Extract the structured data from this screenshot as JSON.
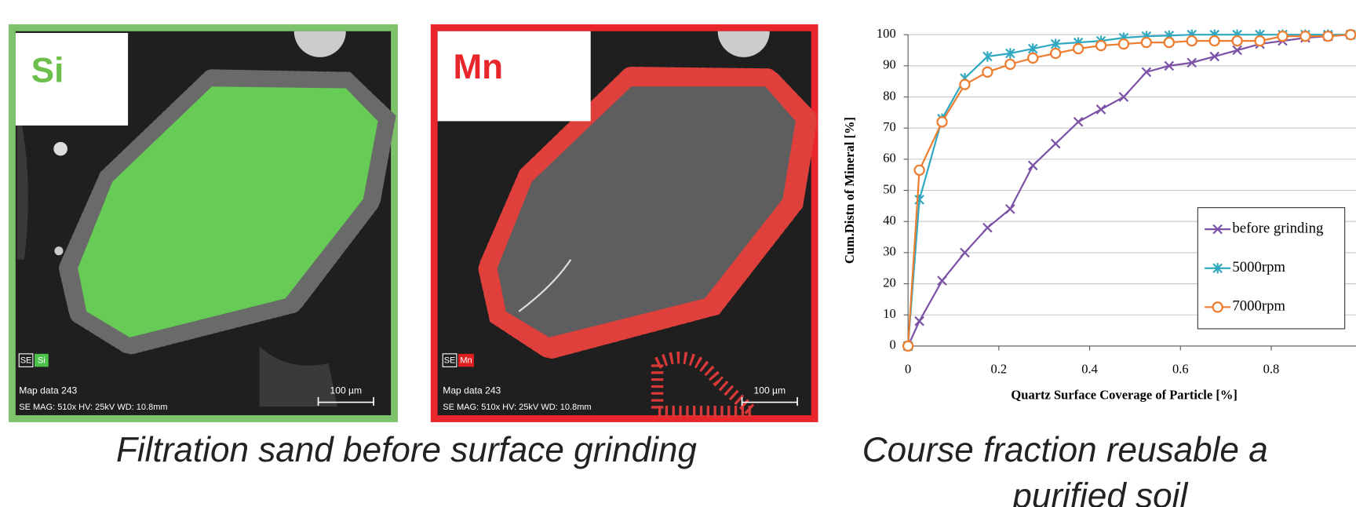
{
  "panels": [
    {
      "label": "Si",
      "label_color": "#6cbf4a",
      "border": "#7dc36b",
      "badge_se": "SE",
      "badge_element": "Si",
      "badge_color": "#4cc24a",
      "map_info": "Map data 243",
      "params": "SE  MAG: 510x  HV: 25kV  WD: 10.8mm",
      "scale": "100 µm"
    },
    {
      "label": "Mn",
      "label_color": "#e8262c",
      "border": "#e8262c",
      "badge_se": "SE",
      "badge_element": "Mn",
      "badge_color": "#e02020",
      "map_info": "Map data 243",
      "params": "SE  MAG: 510x  HV: 25kV  WD: 10.8mm",
      "scale": "100 µm"
    }
  ],
  "captions": {
    "left": "Filtration sand before surface grinding",
    "right": [
      "Course fraction reusable a",
      "purified soil"
    ]
  },
  "chart_data": {
    "type": "line",
    "x_label": "Quartz Surface Coverage of Particle [%]",
    "y_label": "Cum.Distn of Mineral [%]",
    "x": [
      0,
      0.025,
      0.075,
      0.125,
      0.175,
      0.225,
      0.275,
      0.325,
      0.375,
      0.425,
      0.475,
      0.525,
      0.575,
      0.625,
      0.675,
      0.725,
      0.775,
      0.825,
      0.875,
      0.925,
      0.975,
      1
    ],
    "series": [
      {
        "name": "before grinding",
        "color": "#7b52a6",
        "marker": "x",
        "values": [
          0,
          8,
          21,
          30,
          38,
          44,
          58,
          65,
          72,
          76,
          80,
          88,
          90,
          91,
          93,
          95,
          97,
          98,
          99,
          99.5,
          100,
          100
        ]
      },
      {
        "name": "5000rpm",
        "color": "#2fa8c0",
        "marker": "asterisk",
        "values": [
          0,
          47,
          73,
          86,
          93,
          94,
          95.5,
          97,
          97.5,
          98,
          99,
          99.5,
          99.7,
          100,
          100,
          100,
          100,
          100,
          100,
          100,
          100,
          100
        ]
      },
      {
        "name": "7000rpm",
        "color": "#ed7d31",
        "marker": "circle",
        "values": [
          0,
          56.5,
          72,
          84,
          88,
          90.5,
          92.5,
          94,
          95.5,
          96.5,
          97,
          97.5,
          97.5,
          98,
          98,
          98,
          98,
          99.5,
          99.5,
          99.5,
          100,
          100
        ]
      }
    ],
    "xlim": [
      0,
      1
    ],
    "xticks": [
      0,
      0.2,
      0.4,
      0.6,
      0.8,
      1
    ],
    "ylim": [
      0,
      100
    ],
    "yticks": [
      0,
      10,
      20,
      30,
      40,
      50,
      60,
      70,
      80,
      90,
      100
    ],
    "grid": true,
    "legend": "lower right"
  }
}
